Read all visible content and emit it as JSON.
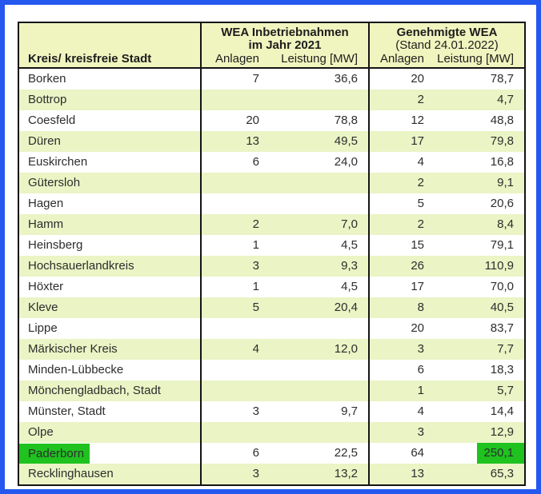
{
  "page": {
    "frame_color": "#2458ee",
    "header_bg_color": "#f0f5bf",
    "band_color": "#eaf4c5",
    "highlight_color": "#1fc21f"
  },
  "table": {
    "col1_header": "Kreis/ kreisfreie Stadt",
    "groups": [
      {
        "line1": "WEA Inbetriebnahmen",
        "line2": "im Jahr 2021",
        "col_anlagen": "Anlagen",
        "col_leistung": "Leistung [MW]"
      },
      {
        "line1": "Genehmigte WEA",
        "line2": "(Stand 24.01.2022)",
        "col_anlagen": "Anlagen",
        "col_leistung": "Leistung [MW]"
      }
    ],
    "rows": [
      {
        "kreis": "Borken",
        "a1": "7",
        "l1": "36,6",
        "a2": "20",
        "l2": "78,7"
      },
      {
        "kreis": "Bottrop",
        "a1": "",
        "l1": "",
        "a2": "2",
        "l2": "4,7"
      },
      {
        "kreis": "Coesfeld",
        "a1": "20",
        "l1": "78,8",
        "a2": "12",
        "l2": "48,8"
      },
      {
        "kreis": "Düren",
        "a1": "13",
        "l1": "49,5",
        "a2": "17",
        "l2": "79,8"
      },
      {
        "kreis": "Euskirchen",
        "a1": "6",
        "l1": "24,0",
        "a2": "4",
        "l2": "16,8"
      },
      {
        "kreis": "Gütersloh",
        "a1": "",
        "l1": "",
        "a2": "2",
        "l2": "9,1"
      },
      {
        "kreis": "Hagen",
        "a1": "",
        "l1": "",
        "a2": "5",
        "l2": "20,6"
      },
      {
        "kreis": "Hamm",
        "a1": "2",
        "l1": "7,0",
        "a2": "2",
        "l2": "8,4"
      },
      {
        "kreis": "Heinsberg",
        "a1": "1",
        "l1": "4,5",
        "a2": "15",
        "l2": "79,1"
      },
      {
        "kreis": "Hochsauerlandkreis",
        "a1": "3",
        "l1": "9,3",
        "a2": "26",
        "l2": "110,9"
      },
      {
        "kreis": "Höxter",
        "a1": "1",
        "l1": "4,5",
        "a2": "17",
        "l2": "70,0"
      },
      {
        "kreis": "Kleve",
        "a1": "5",
        "l1": "20,4",
        "a2": "8",
        "l2": "40,5"
      },
      {
        "kreis": "Lippe",
        "a1": "",
        "l1": "",
        "a2": "20",
        "l2": "83,7"
      },
      {
        "kreis": "Märkischer Kreis",
        "a1": "4",
        "l1": "12,0",
        "a2": "3",
        "l2": "7,7"
      },
      {
        "kreis": "Minden-Lübbecke",
        "a1": "",
        "l1": "",
        "a2": "6",
        "l2": "18,3"
      },
      {
        "kreis": "Mönchengladbach, Stadt",
        "a1": "",
        "l1": "",
        "a2": "1",
        "l2": "5,7"
      },
      {
        "kreis": "Münster, Stadt",
        "a1": "3",
        "l1": "9,7",
        "a2": "4",
        "l2": "14,4"
      },
      {
        "kreis": "Olpe",
        "a1": "",
        "l1": "",
        "a2": "3",
        "l2": "12,9"
      },
      {
        "kreis": "Paderborn",
        "a1": "6",
        "l1": "22,5",
        "a2": "64",
        "l2": "250,1",
        "highlight_kreis": true,
        "highlight_l2": true
      },
      {
        "kreis": "Recklinghausen",
        "a1": "3",
        "l1": "13,2",
        "a2": "13",
        "l2": "65,3"
      }
    ]
  }
}
